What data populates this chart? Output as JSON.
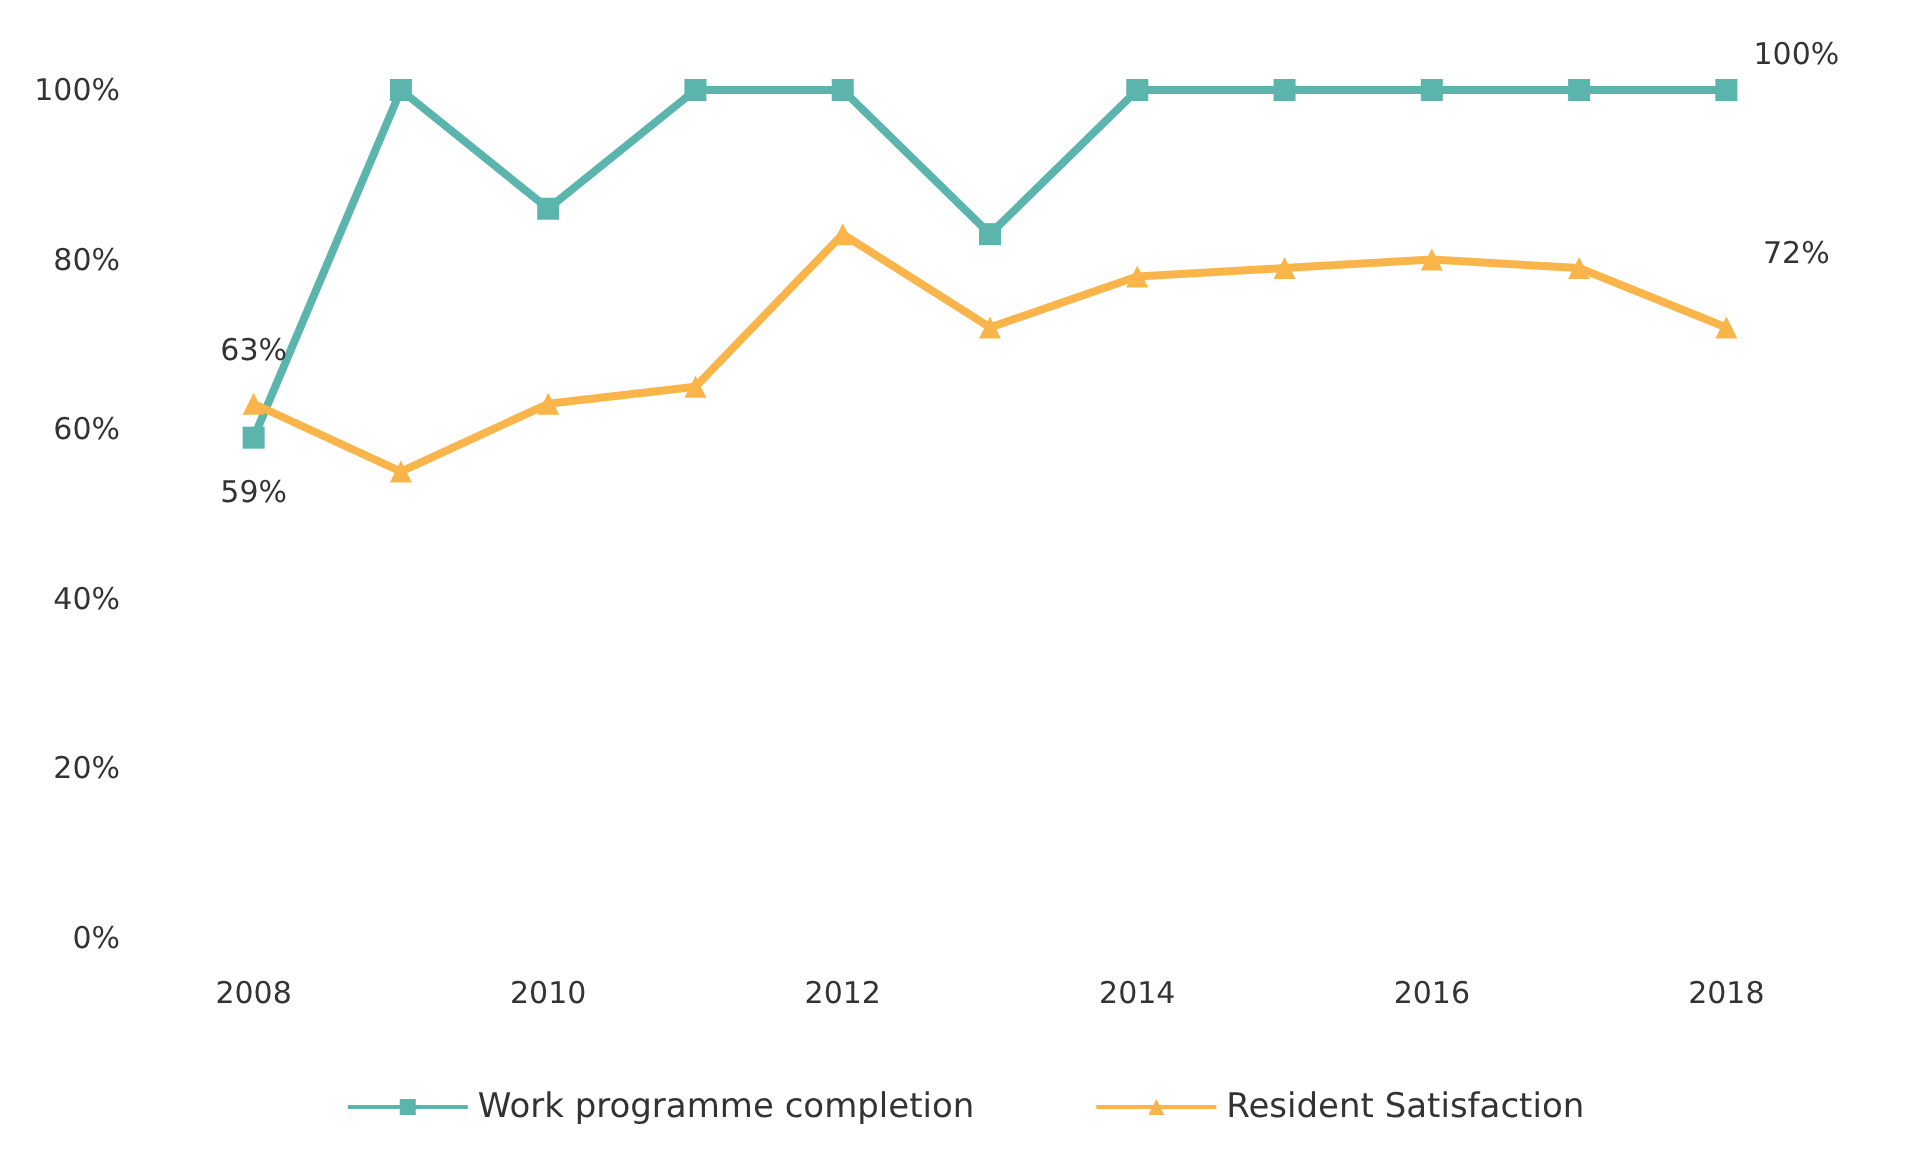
{
  "chart_data": {
    "type": "line",
    "categories": [
      "2008",
      null,
      "2010",
      null,
      "2012",
      null,
      "2014",
      null,
      "2016",
      null,
      "2018"
    ],
    "series": [
      {
        "name": "Work programme completion",
        "color": "#5bb5ad",
        "marker": "square",
        "values": [
          59,
          100,
          86,
          100,
          100,
          83,
          100,
          100,
          100,
          100,
          100
        ],
        "value_labels": [
          "59%",
          null,
          null,
          null,
          null,
          null,
          null,
          null,
          null,
          null,
          "100%"
        ]
      },
      {
        "name": "Resident Satisfaction",
        "color": "#f9b54a",
        "marker": "triangle",
        "values": [
          63,
          55,
          63,
          65,
          83,
          72,
          78,
          79,
          80,
          79,
          72
        ],
        "value_labels": [
          "63%",
          null,
          null,
          null,
          null,
          null,
          null,
          null,
          null,
          null,
          "72%"
        ]
      }
    ],
    "ylim": [
      0,
      100
    ],
    "yticks": [
      {
        "value": 0,
        "label": "0%"
      },
      {
        "value": 20,
        "label": "20%"
      },
      {
        "value": 40,
        "label": "40%"
      },
      {
        "value": 60,
        "label": "60%"
      },
      {
        "value": 80,
        "label": "80%"
      },
      {
        "value": 100,
        "label": "100%"
      }
    ],
    "grid": false,
    "legend": "bottom",
    "line_style": "solid"
  }
}
